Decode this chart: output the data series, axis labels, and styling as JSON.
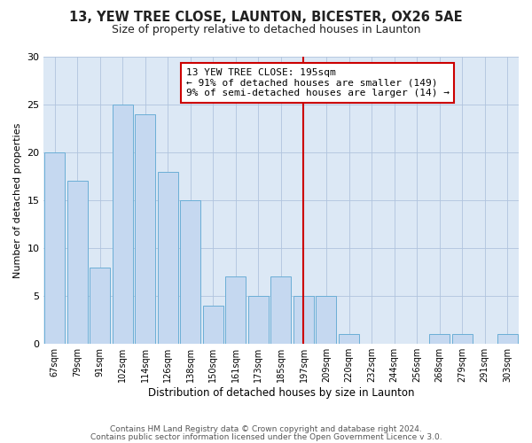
{
  "title": "13, YEW TREE CLOSE, LAUNTON, BICESTER, OX26 5AE",
  "subtitle": "Size of property relative to detached houses in Launton",
  "xlabel": "Distribution of detached houses by size in Launton",
  "ylabel": "Number of detached properties",
  "footer_line1": "Contains HM Land Registry data © Crown copyright and database right 2024.",
  "footer_line2": "Contains public sector information licensed under the Open Government Licence v 3.0.",
  "bin_labels": [
    "67sqm",
    "79sqm",
    "91sqm",
    "102sqm",
    "114sqm",
    "126sqm",
    "138sqm",
    "150sqm",
    "161sqm",
    "173sqm",
    "185sqm",
    "197sqm",
    "209sqm",
    "220sqm",
    "232sqm",
    "244sqm",
    "256sqm",
    "268sqm",
    "279sqm",
    "291sqm",
    "303sqm"
  ],
  "bar_values": [
    20,
    17,
    8,
    25,
    24,
    18,
    15,
    4,
    7,
    5,
    7,
    5,
    5,
    1,
    0,
    0,
    0,
    1,
    1,
    0,
    1
  ],
  "bar_color": "#c5d8f0",
  "bar_edge_color": "#6baed6",
  "property_line_x": 11.0,
  "property_line_color": "#cc0000",
  "annotation_title": "13 YEW TREE CLOSE: 195sqm",
  "annotation_line1": "← 91% of detached houses are smaller (149)",
  "annotation_line2": "9% of semi-detached houses are larger (14) →",
  "annotation_box_color": "#ffffff",
  "annotation_box_edge": "#cc0000",
  "ylim": [
    0,
    30
  ],
  "yticks": [
    0,
    5,
    10,
    15,
    20,
    25,
    30
  ],
  "fig_bg_color": "#ffffff",
  "plot_bg_color": "#dce8f5",
  "grid_color": "#b0c4de"
}
